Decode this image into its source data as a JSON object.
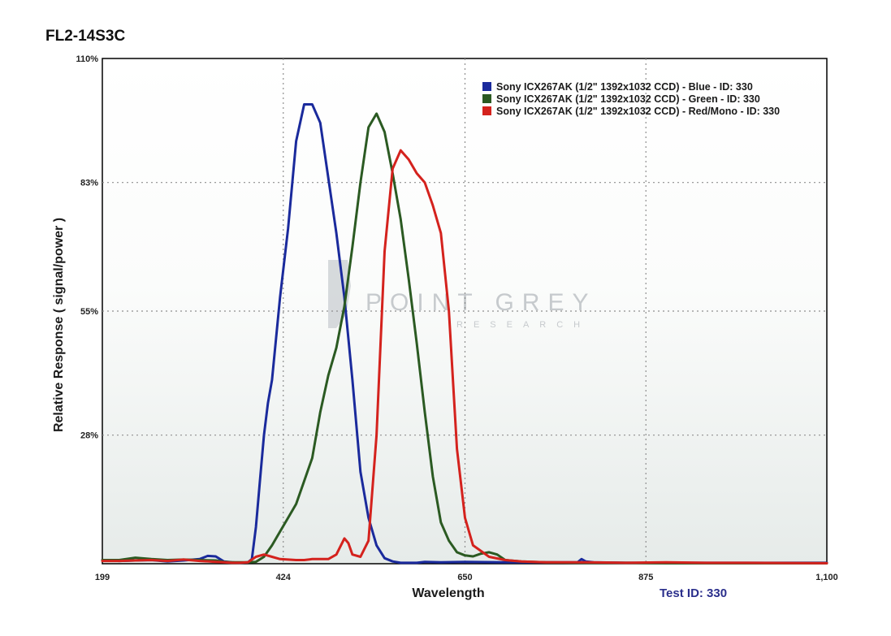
{
  "page": {
    "title": "FL2-14S3C",
    "test_id_label": "Test ID: 330"
  },
  "watermark": {
    "main": "POINT GREY",
    "sub": "RESEARCH"
  },
  "chart_data": {
    "type": "line",
    "title": "FL2-14S3C",
    "xlabel": "Wavelength",
    "ylabel": "Relative Response ( signal/power )",
    "xlim": [
      199,
      1100
    ],
    "ylim": [
      0,
      110
    ],
    "x_ticks": [
      199,
      424,
      650,
      875,
      1100
    ],
    "x_tick_labels": [
      "199",
      "424",
      "650",
      "875",
      "1,100"
    ],
    "y_ticks": [
      28,
      55,
      83,
      110
    ],
    "y_tick_labels": [
      "28%",
      "55%",
      "83%",
      "110%"
    ],
    "grid": true,
    "legend_position": "top-right",
    "series": [
      {
        "name": "Sony ICX267AK (1/2\" 1392x1032 CCD) - Blue  - ID: 330",
        "color": "#1a2a9c",
        "x": [
          199,
          220,
          240,
          260,
          280,
          300,
          320,
          330,
          340,
          350,
          360,
          370,
          380,
          385,
          390,
          395,
          400,
          405,
          410,
          420,
          430,
          440,
          450,
          460,
          470,
          480,
          490,
          500,
          510,
          520,
          530,
          540,
          550,
          560,
          570,
          580,
          590,
          600,
          620,
          650,
          700,
          750,
          790,
          795,
          800,
          810,
          850,
          900,
          1000,
          1100
        ],
        "y": [
          0.8,
          0.6,
          0.7,
          0.8,
          0.5,
          0.7,
          1.0,
          1.7,
          1.6,
          0.5,
          0.3,
          0.2,
          0.3,
          1.0,
          8,
          18,
          28,
          35,
          40,
          58,
          73,
          92,
          100,
          100,
          96,
          84,
          72,
          58,
          40,
          20,
          10,
          4,
          1.2,
          0.5,
          0.2,
          0.2,
          0.2,
          0.4,
          0.3,
          0.4,
          0.3,
          0.3,
          0.3,
          1.0,
          0.5,
          0.3,
          0.2,
          0.2,
          0.2,
          0.2
        ]
      },
      {
        "name": "Sony ICX267AK (1/2\" 1392x1032 CCD) - Green  - ID: 330",
        "color": "#2b5a22",
        "x": [
          199,
          220,
          240,
          260,
          280,
          300,
          320,
          340,
          350,
          360,
          370,
          380,
          390,
          400,
          410,
          420,
          430,
          440,
          450,
          460,
          470,
          480,
          490,
          500,
          510,
          520,
          530,
          540,
          550,
          560,
          570,
          580,
          590,
          600,
          610,
          620,
          630,
          640,
          650,
          660,
          670,
          680,
          690,
          700,
          720,
          750,
          800,
          850,
          900,
          1000,
          1100
        ],
        "y": [
          0.8,
          0.8,
          1.3,
          1.0,
          0.8,
          0.9,
          0.8,
          0.7,
          0.4,
          0.3,
          0.3,
          0.3,
          0.4,
          1.5,
          4,
          7,
          10,
          13,
          18,
          23,
          33,
          41,
          47,
          56,
          69,
          83,
          95,
          98,
          94,
          85,
          75,
          62,
          48,
          33,
          19,
          9,
          5,
          2.5,
          1.8,
          1.6,
          2.2,
          2.5,
          2.0,
          0.8,
          0.5,
          0.3,
          0.2,
          0.2,
          0.1,
          0.1,
          0.1
        ]
      },
      {
        "name": "Sony ICX267AK (1/2\" 1392x1032 CCD) - Red/Mono - ID: 330",
        "color": "#d4221d",
        "x": [
          199,
          220,
          240,
          260,
          280,
          300,
          320,
          340,
          350,
          360,
          370,
          380,
          390,
          400,
          410,
          420,
          430,
          440,
          450,
          460,
          470,
          480,
          490,
          500,
          505,
          510,
          520,
          530,
          540,
          550,
          560,
          570,
          580,
          590,
          600,
          610,
          620,
          630,
          640,
          650,
          660,
          680,
          700,
          720,
          750,
          800,
          850,
          900,
          950,
          1000,
          1100
        ],
        "y": [
          0.6,
          0.6,
          0.7,
          0.8,
          0.6,
          0.9,
          0.6,
          0.4,
          0.3,
          0.2,
          0.2,
          0.3,
          1.5,
          2.0,
          1.5,
          1.0,
          0.9,
          0.8,
          0.8,
          1.0,
          1.0,
          1.0,
          2.0,
          5.5,
          4.5,
          2.0,
          1.5,
          5,
          28,
          68,
          86,
          90,
          88,
          85,
          83,
          78,
          72,
          55,
          25,
          10,
          4,
          1.5,
          0.8,
          0.5,
          0.3,
          0.3,
          0.2,
          0.3,
          0.2,
          0.2,
          0.1
        ]
      }
    ]
  }
}
